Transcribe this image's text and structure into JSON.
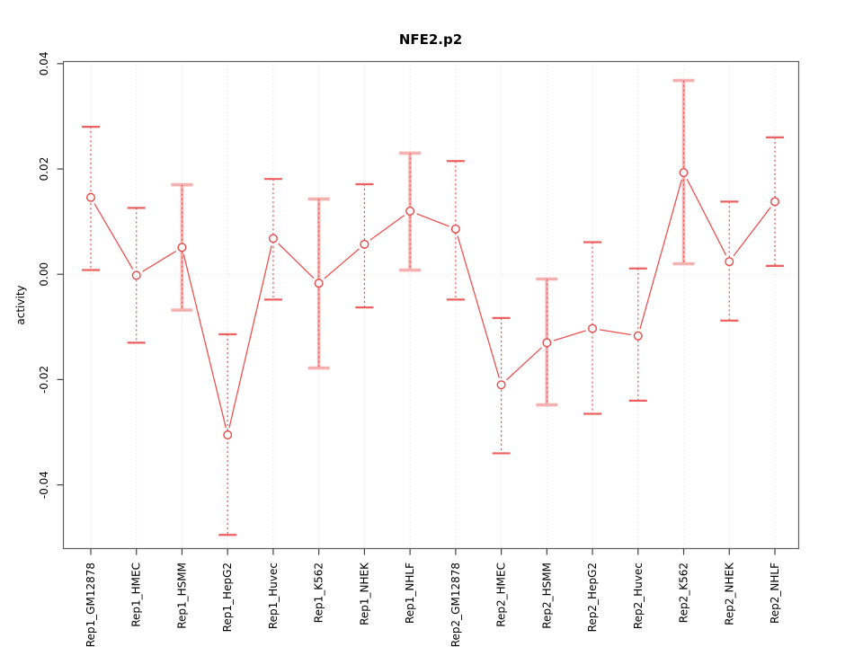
{
  "title": "NFE2.p2",
  "chart_data": {
    "type": "line",
    "subtype": "points-with-error-bars",
    "title": "NFE2.p2",
    "xlabel": "",
    "ylabel": "activity",
    "ylim": [
      -0.0521,
      0.0404
    ],
    "yticks": [
      -0.04,
      -0.02,
      0,
      0.02,
      0.04
    ],
    "ytick_labels": [
      "-0.04",
      "-0.02",
      "0.00",
      "0.02",
      "0.04"
    ],
    "grid": "dotted vertical line at each category; dotted horizontal line at 0",
    "legend_position": "none",
    "categories": [
      "Rep1_GM12878",
      "Rep1_HMEC",
      "Rep1_HSMM",
      "Rep1_HepG2",
      "Rep1_Huvec",
      "Rep1_K562",
      "Rep1_NHEK",
      "Rep1_NHLF",
      "Rep2_GM12878",
      "Rep2_HMEC",
      "Rep2_HSMM",
      "Rep2_HepG2",
      "Rep2_Huvec",
      "Rep2_K562",
      "Rep2_NHEK",
      "Rep2_NHLF"
    ],
    "series": [
      {
        "name": "activity",
        "values": [
          0.0146,
          -0.0002,
          0.0051,
          -0.0305,
          0.0068,
          -0.0017,
          0.0057,
          0.012,
          0.0086,
          -0.021,
          -0.013,
          -0.0103,
          -0.0117,
          0.0193,
          0.0024,
          0.0138
        ],
        "error_upper": [
          0.028,
          0.0126,
          0.017,
          -0.0114,
          0.0181,
          0.0143,
          0.0171,
          0.023,
          0.0215,
          -0.0083,
          -0.0009,
          0.0061,
          0.0011,
          0.0368,
          0.0138,
          0.026
        ],
        "error_lower": [
          0.0008,
          -0.013,
          -0.0068,
          -0.0495,
          -0.0048,
          -0.0178,
          -0.0063,
          0.0008,
          -0.0048,
          -0.034,
          -0.0248,
          -0.0265,
          -0.024,
          0.002,
          -0.0088,
          0.0016
        ],
        "thick_error_bar": [
          false,
          false,
          true,
          false,
          false,
          true,
          false,
          true,
          false,
          false,
          true,
          false,
          false,
          true,
          false,
          false
        ]
      }
    ],
    "colors": {
      "line": "#ec5252",
      "point": "#e94848",
      "error": "#e85050",
      "error_cap": "#ec6060",
      "error_light": "#f5b0b0",
      "grid": "#d9d9d9",
      "box": "#5f5f5f",
      "tick": "#404040",
      "text": "#000000",
      "background": "#ffffff"
    }
  }
}
